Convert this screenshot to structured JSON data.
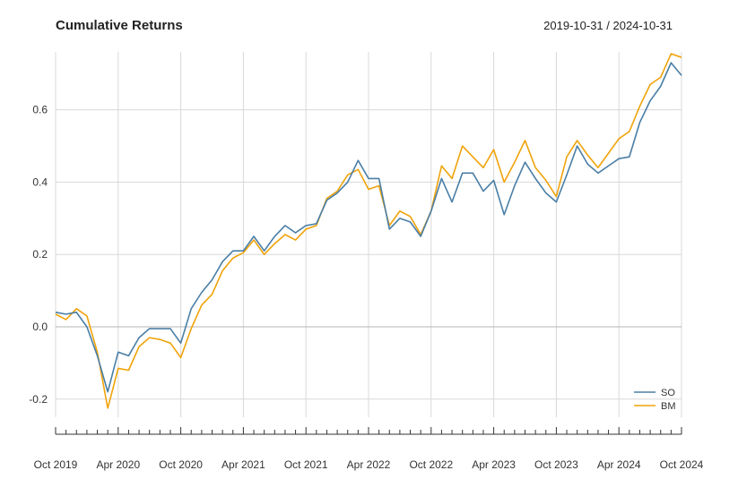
{
  "chart_data": {
    "type": "line",
    "title": "Cumulative Returns",
    "date_range": "2019-10-31 / 2024-10-31",
    "xlabel": "",
    "ylabel": "",
    "ylim": [
      -0.25,
      0.76
    ],
    "y_ticks": [
      "-0.2",
      "0.0",
      "0.2",
      "0.4",
      "0.6"
    ],
    "y_tick_values": [
      -0.2,
      0.0,
      0.2,
      0.4,
      0.6
    ],
    "x_tick_labels": [
      "Oct 2019",
      "Apr 2020",
      "Oct 2020",
      "Apr 2021",
      "Oct 2021",
      "Apr 2022",
      "Oct 2022",
      "Apr 2023",
      "Oct 2023",
      "Apr 2024",
      "Oct 2024"
    ],
    "x": [
      "2019-10",
      "2019-11",
      "2019-12",
      "2020-01",
      "2020-02",
      "2020-03",
      "2020-04",
      "2020-05",
      "2020-06",
      "2020-07",
      "2020-08",
      "2020-09",
      "2020-10",
      "2020-11",
      "2020-12",
      "2021-01",
      "2021-02",
      "2021-03",
      "2021-04",
      "2021-05",
      "2021-06",
      "2021-07",
      "2021-08",
      "2021-09",
      "2021-10",
      "2021-11",
      "2021-12",
      "2022-01",
      "2022-02",
      "2022-03",
      "2022-04",
      "2022-05",
      "2022-06",
      "2022-07",
      "2022-08",
      "2022-09",
      "2022-10",
      "2022-11",
      "2022-12",
      "2023-01",
      "2023-02",
      "2023-03",
      "2023-04",
      "2023-05",
      "2023-06",
      "2023-07",
      "2023-08",
      "2023-09",
      "2023-10",
      "2023-11",
      "2023-12",
      "2024-01",
      "2024-02",
      "2024-03",
      "2024-04",
      "2024-05",
      "2024-06",
      "2024-07",
      "2024-08",
      "2024-09",
      "2024-10"
    ],
    "series": [
      {
        "name": "SO",
        "color": "#4a7ea6",
        "values": [
          0.04,
          0.035,
          0.04,
          0.0,
          -0.08,
          -0.18,
          -0.07,
          -0.08,
          -0.03,
          -0.005,
          -0.005,
          -0.005,
          -0.045,
          0.05,
          0.095,
          0.13,
          0.18,
          0.21,
          0.21,
          0.25,
          0.21,
          0.25,
          0.28,
          0.26,
          0.28,
          0.285,
          0.35,
          0.37,
          0.4,
          0.46,
          0.41,
          0.41,
          0.27,
          0.3,
          0.29,
          0.25,
          0.32,
          0.41,
          0.345,
          0.425,
          0.425,
          0.375,
          0.405,
          0.31,
          0.39,
          0.455,
          0.41,
          0.37,
          0.345,
          0.42,
          0.5,
          0.45,
          0.425,
          0.445,
          0.465,
          0.47,
          0.565,
          0.625,
          0.665,
          0.73,
          0.695
        ]
      },
      {
        "name": "BM",
        "color": "#f0a30a",
        "values": [
          0.035,
          0.02,
          0.05,
          0.03,
          -0.07,
          -0.225,
          -0.115,
          -0.12,
          -0.055,
          -0.03,
          -0.035,
          -0.045,
          -0.085,
          -0.005,
          0.06,
          0.09,
          0.155,
          0.19,
          0.205,
          0.24,
          0.2,
          0.23,
          0.255,
          0.24,
          0.27,
          0.28,
          0.355,
          0.375,
          0.42,
          0.435,
          0.38,
          0.39,
          0.28,
          0.32,
          0.305,
          0.255,
          0.32,
          0.445,
          0.41,
          0.5,
          0.47,
          0.44,
          0.49,
          0.4,
          0.455,
          0.515,
          0.44,
          0.405,
          0.36,
          0.47,
          0.515,
          0.475,
          0.44,
          0.48,
          0.52,
          0.54,
          0.61,
          0.67,
          0.69,
          0.755,
          0.745
        ]
      }
    ],
    "legend": [
      "SO",
      "BM"
    ],
    "legend_position": "bottom-right",
    "grid": true
  }
}
